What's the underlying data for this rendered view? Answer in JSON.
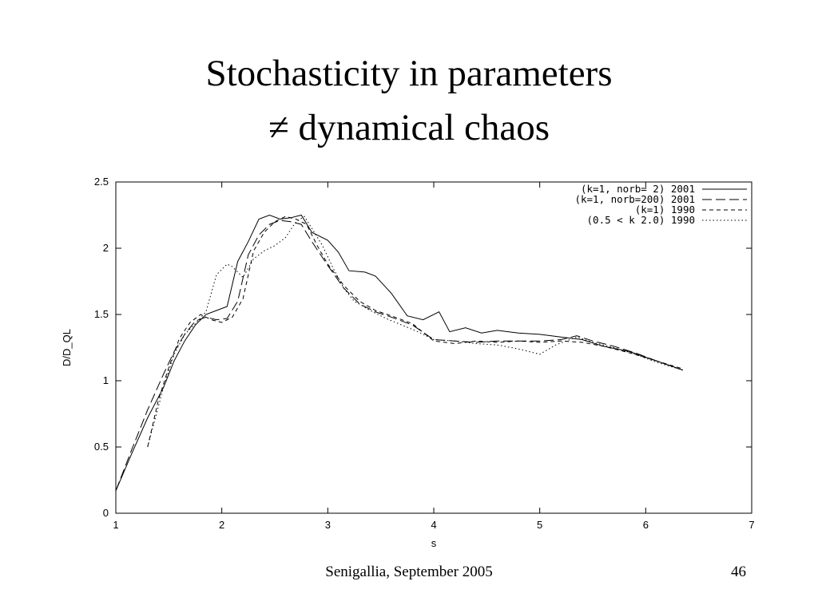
{
  "slide": {
    "title_line1": "Stochasticity in parameters",
    "title_line2": "≠ dynamical chaos",
    "footer": "Senigallia, September 2005",
    "page_number": "46"
  },
  "chart_data": {
    "type": "line",
    "title": "",
    "xlabel": "s",
    "ylabel": "D/D_QL",
    "xlim": [
      1,
      7
    ],
    "ylim": [
      0,
      2.5
    ],
    "xticks": [
      1,
      2,
      3,
      4,
      5,
      6,
      7
    ],
    "yticks": [
      0,
      0.5,
      1,
      1.5,
      2,
      2.5
    ],
    "grid": false,
    "legend_position": "top-right-inside",
    "line_color": "#000000",
    "series": [
      {
        "name": "(k=1, norb=  2) 2001",
        "dash": "solid",
        "x": [
          1.0,
          1.15,
          1.3,
          1.45,
          1.55,
          1.65,
          1.75,
          1.85,
          1.95,
          2.05,
          2.15,
          2.25,
          2.35,
          2.45,
          2.55,
          2.65,
          2.75,
          2.85,
          3.0,
          3.1,
          3.2,
          3.35,
          3.45,
          3.6,
          3.75,
          3.9,
          4.05,
          4.15,
          4.3,
          4.45,
          4.6,
          4.8,
          5.0,
          5.2,
          5.4,
          5.6,
          5.85,
          6.1,
          6.35
        ],
        "y": [
          0.17,
          0.45,
          0.72,
          0.95,
          1.15,
          1.3,
          1.42,
          1.5,
          1.53,
          1.56,
          1.9,
          2.05,
          2.22,
          2.25,
          2.22,
          2.23,
          2.25,
          2.12,
          2.06,
          1.97,
          1.83,
          1.82,
          1.79,
          1.66,
          1.49,
          1.46,
          1.52,
          1.37,
          1.4,
          1.36,
          1.38,
          1.36,
          1.35,
          1.33,
          1.31,
          1.26,
          1.22,
          1.15,
          1.08
        ]
      },
      {
        "name": "(k=1, norb=200) 2001",
        "dash": "long-dash",
        "x": [
          1.0,
          1.15,
          1.3,
          1.45,
          1.55,
          1.65,
          1.75,
          1.85,
          1.95,
          2.05,
          2.15,
          2.25,
          2.35,
          2.45,
          2.55,
          2.65,
          2.75,
          2.85,
          3.0,
          3.15,
          3.3,
          3.45,
          3.6,
          3.8,
          4.0,
          4.2,
          4.4,
          4.6,
          4.8,
          5.0,
          5.2,
          5.35,
          5.5,
          5.7,
          5.9,
          6.1,
          6.35
        ],
        "y": [
          0.17,
          0.48,
          0.78,
          1.05,
          1.22,
          1.35,
          1.45,
          1.48,
          1.46,
          1.47,
          1.6,
          1.95,
          2.1,
          2.18,
          2.21,
          2.2,
          2.18,
          2.05,
          1.87,
          1.7,
          1.58,
          1.52,
          1.48,
          1.42,
          1.31,
          1.3,
          1.29,
          1.3,
          1.3,
          1.3,
          1.31,
          1.34,
          1.3,
          1.26,
          1.21,
          1.15,
          1.08
        ]
      },
      {
        "name": "(k=1) 1990",
        "dash": "short-dash",
        "x": [
          1.3,
          1.4,
          1.5,
          1.6,
          1.7,
          1.8,
          1.9,
          2.0,
          2.1,
          2.2,
          2.3,
          2.4,
          2.5,
          2.6,
          2.7,
          2.8,
          2.9,
          3.0,
          3.15,
          3.3,
          3.45,
          3.6,
          3.8,
          4.0,
          4.2,
          4.4,
          4.6,
          4.8,
          5.0,
          5.2,
          5.4,
          5.6,
          5.85,
          6.1,
          6.35
        ],
        "y": [
          0.5,
          0.85,
          1.1,
          1.32,
          1.44,
          1.5,
          1.46,
          1.44,
          1.48,
          1.62,
          1.98,
          2.12,
          2.2,
          2.24,
          2.22,
          2.18,
          2.02,
          1.88,
          1.72,
          1.6,
          1.53,
          1.49,
          1.43,
          1.3,
          1.28,
          1.3,
          1.29,
          1.3,
          1.29,
          1.3,
          1.29,
          1.26,
          1.21,
          1.15,
          1.09
        ]
      },
      {
        "name": "(0.5 < k 2.0) 1990",
        "dash": "dotted",
        "x": [
          1.3,
          1.45,
          1.55,
          1.65,
          1.75,
          1.85,
          1.95,
          2.05,
          2.1,
          2.2,
          2.3,
          2.4,
          2.5,
          2.6,
          2.7,
          2.78,
          2.85,
          2.95,
          3.05,
          3.15,
          3.25,
          3.4,
          3.55,
          3.7,
          3.85,
          4.0,
          4.2,
          4.4,
          4.6,
          4.8,
          5.0,
          5.15,
          5.35,
          5.5,
          5.7,
          5.9,
          6.1,
          6.35
        ],
        "y": [
          0.5,
          0.95,
          1.2,
          1.35,
          1.43,
          1.52,
          1.8,
          1.88,
          1.86,
          1.78,
          1.92,
          1.98,
          2.02,
          2.08,
          2.2,
          2.24,
          2.15,
          2.02,
          1.85,
          1.7,
          1.6,
          1.53,
          1.47,
          1.42,
          1.37,
          1.31,
          1.3,
          1.28,
          1.27,
          1.24,
          1.2,
          1.27,
          1.33,
          1.29,
          1.25,
          1.2,
          1.14,
          1.08
        ]
      }
    ]
  }
}
